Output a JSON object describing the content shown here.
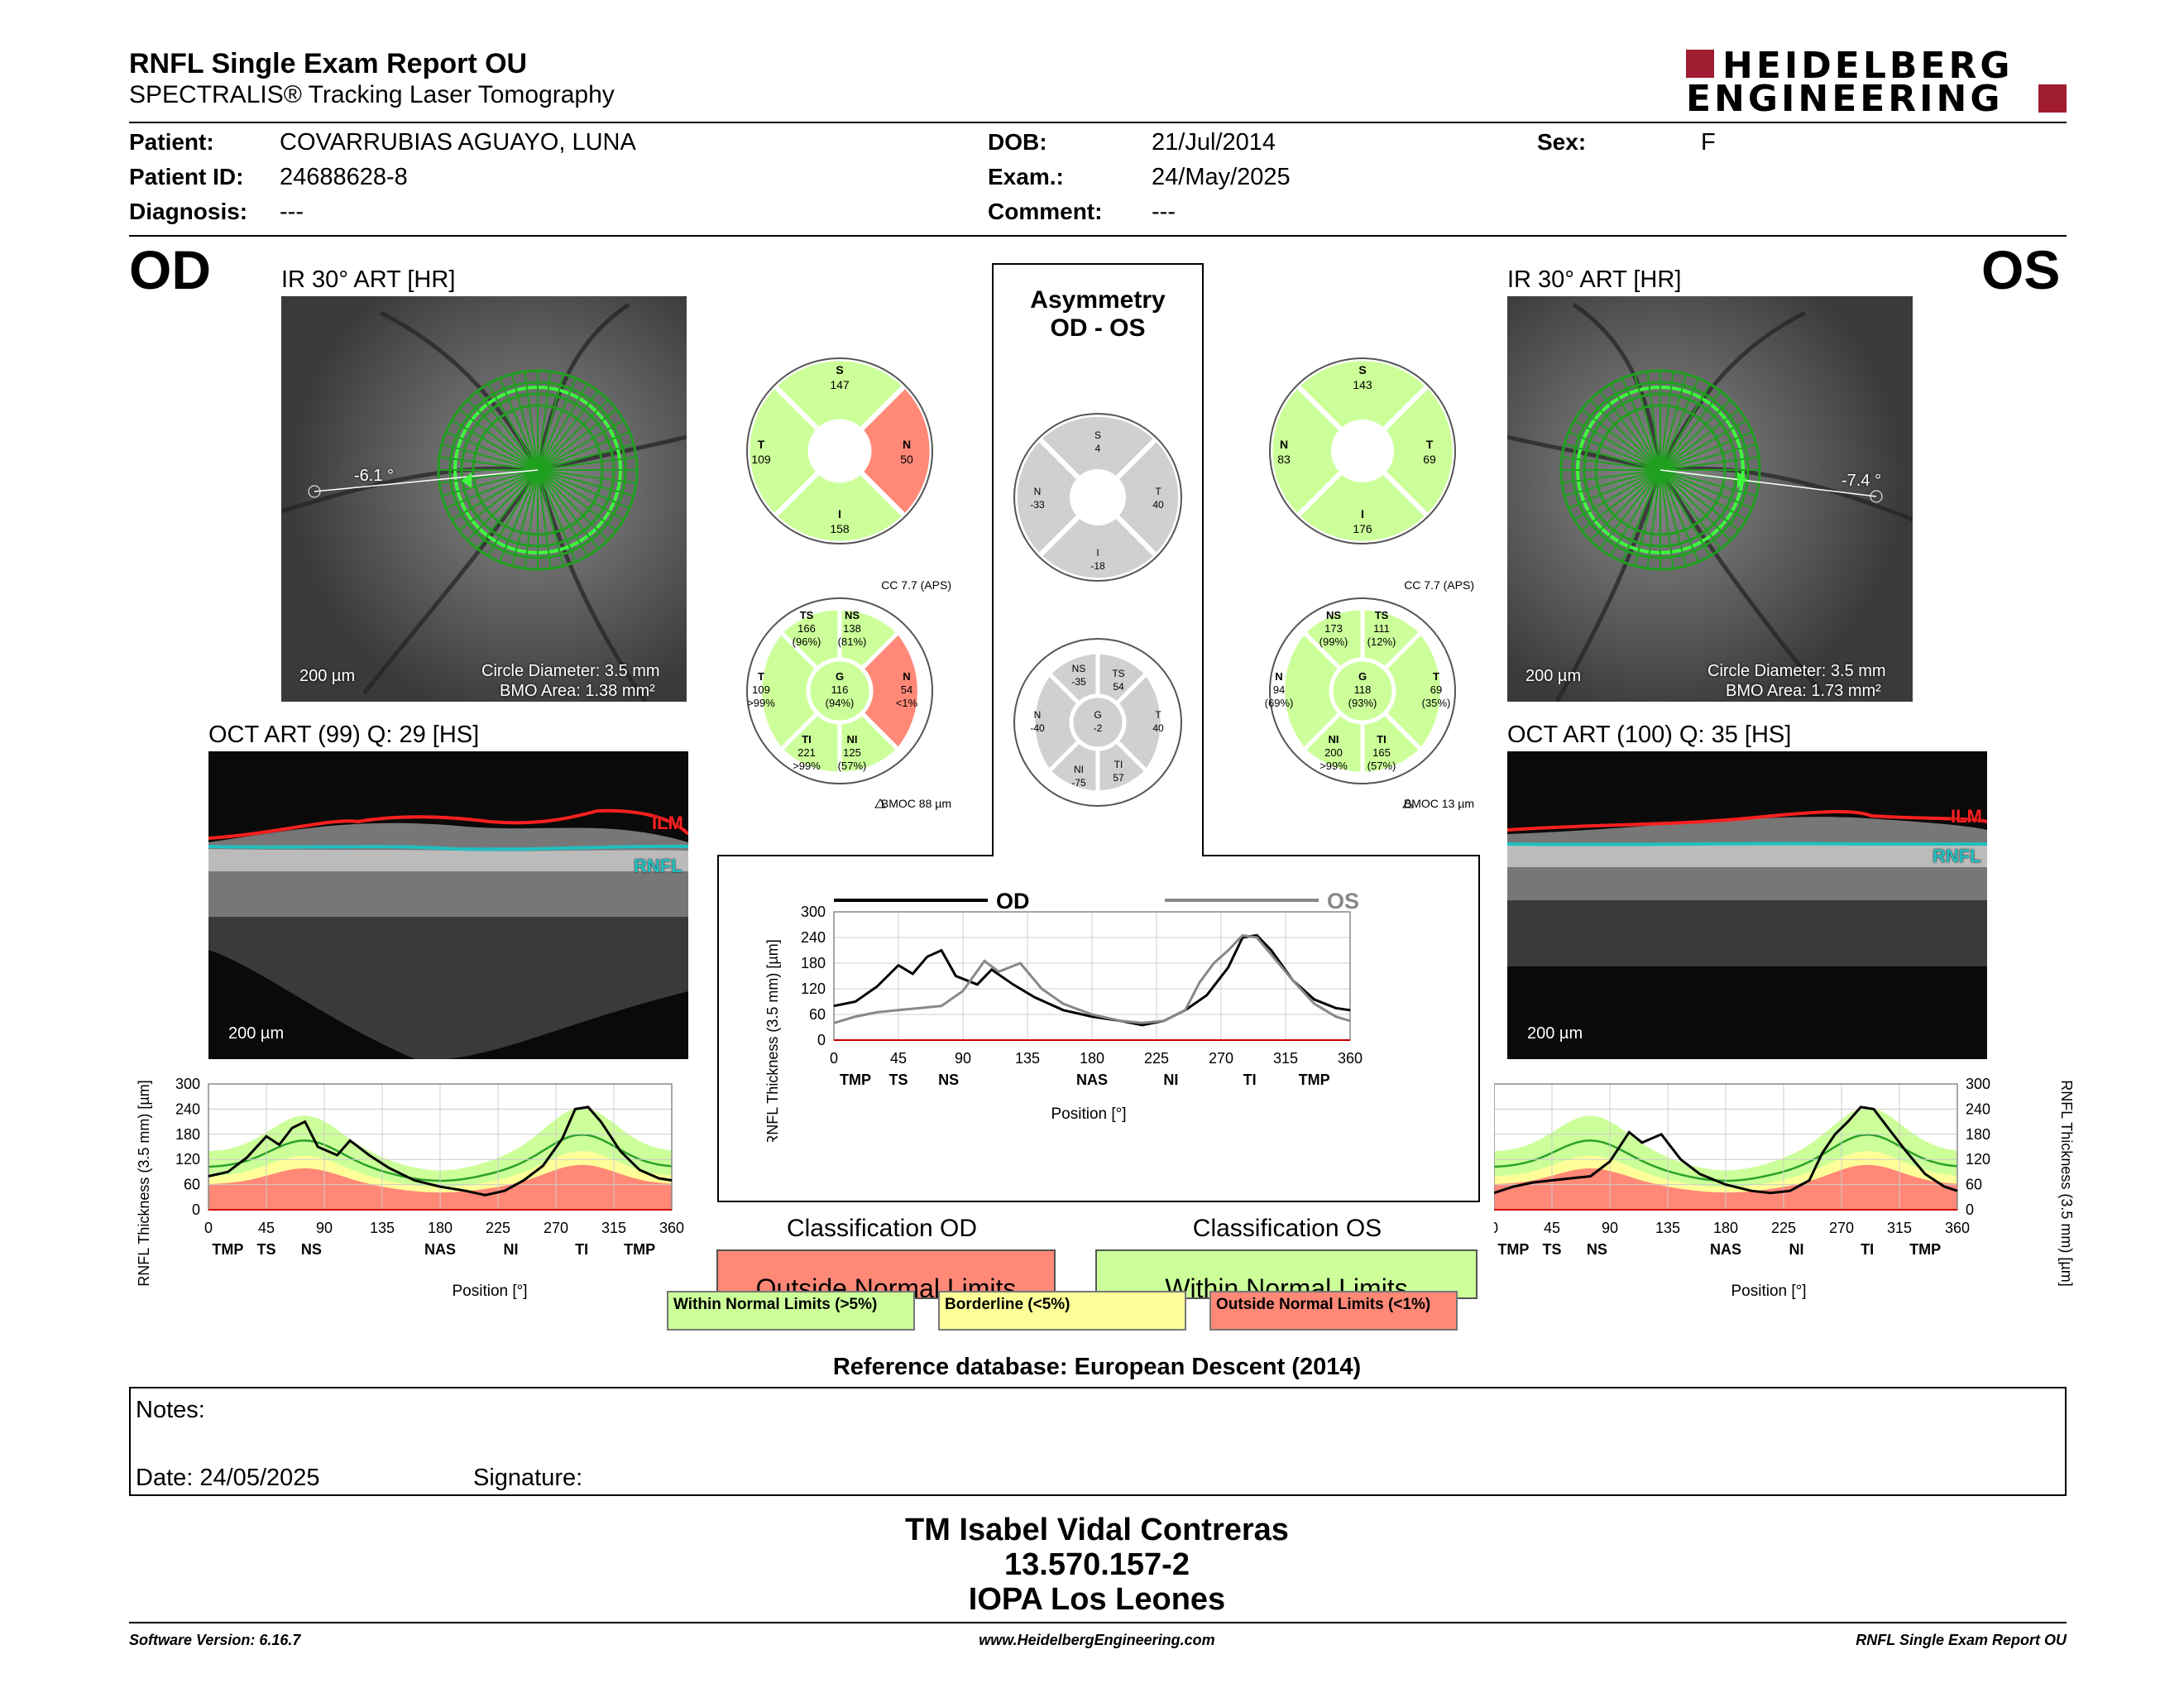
{
  "header": {
    "title": "RNFL Single Exam Report OU",
    "subtitle": "SPECTRALIS® Tracking Laser Tomography",
    "logo_line1": "HEIDELBERG",
    "logo_line2": "ENGINEERING"
  },
  "patient": {
    "patient_label": "Patient:",
    "patient": "COVARRUBIAS AGUAYO, LUNA",
    "id_label": "Patient ID:",
    "id": "24688628-8",
    "diagnosis_label": "Diagnosis:",
    "diagnosis": "---",
    "dob_label": "DOB:",
    "dob": "21/Jul/2014",
    "exam_label": "Exam.:",
    "exam": "24/May/2025",
    "comment_label": "Comment:",
    "comment": "---",
    "sex_label": "Sex:",
    "sex": "F"
  },
  "od": {
    "eye": "OD",
    "ir_title": "IR 30° ART [HR]",
    "angle": "-6.1 °",
    "scale": "200 µm",
    "circle": "Circle Diameter: 3.5 mm",
    "bmo": "BMO Area: 1.38 mm²",
    "oct_title": "OCT ART (99) Q: 29 [HS]",
    "oct_scale": "200 µm",
    "ilm": "ILM",
    "rnfl": "RNFL",
    "sectors": {
      "S": "147",
      "T": "109",
      "N": "50",
      "I": "158"
    },
    "cc": "CC 7.7 (APS)",
    "bmoc": "BMOC 88 µm",
    "garway": {
      "TS": [
        "TS",
        "166",
        "(96%)"
      ],
      "NS": [
        "NS",
        "138",
        "(81%)"
      ],
      "T": [
        "T",
        "109",
        ">99%"
      ],
      "G": [
        "G",
        "116",
        "(94%)"
      ],
      "N": [
        "N",
        "54",
        "<1%"
      ],
      "TI": [
        "TI",
        "221",
        ">99%"
      ],
      "NI": [
        "NI",
        "125",
        "(57%)"
      ]
    }
  },
  "os": {
    "eye": "OS",
    "ir_title": "IR 30° ART [HR]",
    "angle": "-7.4 °",
    "scale": "200 µm",
    "circle": "Circle Diameter: 3.5 mm",
    "bmo": "BMO Area: 1.73 mm²",
    "oct_title": "OCT ART (100) Q: 35 [HS]",
    "oct_scale": "200 µm",
    "ilm": "ILM",
    "rnfl": "RNFL",
    "sectors": {
      "S": "143",
      "N": "83",
      "T": "69",
      "I": "176"
    },
    "cc": "CC 7.7 (APS)",
    "bmoc": "BMOC 13 µm",
    "garway": {
      "NS": [
        "NS",
        "173",
        "(99%)"
      ],
      "TS": [
        "TS",
        "111",
        "(12%)"
      ],
      "N": [
        "N",
        "94",
        "(69%)"
      ],
      "G": [
        "G",
        "118",
        "(93%)"
      ],
      "T": [
        "T",
        "69",
        "(35%)"
      ],
      "NI": [
        "NI",
        "200",
        ">99%"
      ],
      "TI": [
        "TI",
        "165",
        "(57%)"
      ]
    }
  },
  "asym": {
    "title1": "Asymmetry",
    "title2": "OD - OS",
    "sectors": {
      "S": "4",
      "N": "-33",
      "T": "40",
      "I": "-18"
    },
    "garway": {
      "NS": [
        "NS",
        "-35"
      ],
      "TS": [
        "TS",
        "54"
      ],
      "N": [
        "N",
        "-40"
      ],
      "G": [
        "G",
        "-2"
      ],
      "T": [
        "T",
        "40"
      ],
      "NI": [
        "NI",
        "-75"
      ],
      "TI": [
        "TI",
        "57"
      ]
    }
  },
  "chart_data": [
    {
      "type": "line",
      "title": "",
      "ylabel": "RNFL Thickness (3.5 mm) [µm]",
      "xlabel": "Position [°]",
      "xlim": [
        0,
        360
      ],
      "ylim": [
        0,
        300
      ],
      "xticks": [
        0,
        45,
        90,
        135,
        180,
        225,
        270,
        315,
        360
      ],
      "yticks": [
        0,
        60,
        120,
        180,
        240,
        300
      ],
      "sector_labels": [
        "TMP",
        "TS",
        "NS",
        "NAS",
        "NI",
        "TI",
        "TMP"
      ],
      "series": [
        {
          "name": "OD",
          "x": [
            0,
            15,
            30,
            45,
            55,
            65,
            75,
            85,
            100,
            110,
            125,
            140,
            160,
            180,
            200,
            215,
            230,
            245,
            260,
            275,
            285,
            295,
            305,
            320,
            335,
            350,
            360
          ],
          "y": [
            80,
            90,
            125,
            175,
            155,
            195,
            210,
            150,
            130,
            165,
            130,
            100,
            70,
            55,
            45,
            35,
            45,
            70,
            105,
            170,
            240,
            245,
            210,
            140,
            95,
            75,
            70
          ]
        },
        {
          "name": "OS",
          "x": [
            0,
            15,
            30,
            45,
            60,
            75,
            90,
            105,
            115,
            130,
            145,
            160,
            180,
            200,
            215,
            230,
            245,
            255,
            265,
            275,
            285,
            295,
            305,
            320,
            335,
            350,
            360
          ],
          "y": [
            40,
            55,
            65,
            70,
            75,
            80,
            115,
            185,
            160,
            180,
            120,
            85,
            60,
            45,
            40,
            45,
            70,
            135,
            180,
            210,
            245,
            240,
            200,
            140,
            85,
            55,
            45
          ]
        }
      ]
    },
    {
      "type": "area",
      "title": "",
      "ylabel": "RNFL Thickness (3.5 mm) [µm]",
      "xlabel": "Position [°]",
      "xlim": [
        0,
        360
      ],
      "ylim": [
        0,
        300
      ],
      "series": [
        {
          "name": "OD",
          "x": [
            0,
            15,
            30,
            45,
            55,
            65,
            75,
            85,
            100,
            110,
            125,
            140,
            160,
            180,
            200,
            215,
            230,
            245,
            260,
            275,
            285,
            295,
            305,
            320,
            335,
            350,
            360
          ],
          "y": [
            80,
            90,
            125,
            175,
            155,
            195,
            210,
            150,
            130,
            165,
            130,
            100,
            70,
            55,
            45,
            35,
            45,
            70,
            105,
            170,
            240,
            245,
            210,
            140,
            95,
            75,
            70
          ]
        }
      ]
    },
    {
      "type": "area",
      "title": "",
      "ylabel": "RNFL Thickness (3.5 mm) [µm]",
      "xlabel": "Position [°]",
      "xlim": [
        0,
        360
      ],
      "ylim": [
        0,
        300
      ],
      "series": [
        {
          "name": "OS",
          "x": [
            0,
            15,
            30,
            45,
            60,
            75,
            90,
            105,
            115,
            130,
            145,
            160,
            180,
            200,
            215,
            230,
            245,
            255,
            265,
            275,
            285,
            295,
            305,
            320,
            335,
            350,
            360
          ],
          "y": [
            40,
            55,
            65,
            70,
            75,
            80,
            115,
            185,
            160,
            180,
            120,
            85,
            60,
            45,
            40,
            45,
            70,
            135,
            180,
            210,
            245,
            240,
            200,
            140,
            85,
            55,
            45
          ]
        }
      ]
    }
  ],
  "classification": {
    "od_title": "Classification OD",
    "od_value": "Outside Normal Limits",
    "os_title": "Classification OS",
    "os_value": "Within Normal Limits",
    "legend_wnl": "Within Normal Limits (>5%)",
    "legend_bl": "Borderline (<5%)",
    "legend_onl": "Outside Normal Limits (<1%)",
    "reference": "Reference database: European Descent (2014)"
  },
  "notes": {
    "label": "Notes:",
    "date": "Date: 24/05/2025",
    "signature": "Signature:"
  },
  "signer": {
    "name": "TM Isabel Vidal Contreras",
    "id": "13.570.157-2",
    "org": "IOPA Los Leones"
  },
  "footer": {
    "software": "Software Version: 6.16.7",
    "website": "www.HeidelbergEngineering.com",
    "report": "RNFL Single Exam Report OU"
  },
  "colors": {
    "wnl": "#ccff99",
    "borderline": "#ffff99",
    "onl": "#ff8877",
    "gray": "#d0d0d0",
    "logo_red": "#a01c30",
    "ilm": "#ff2020",
    "rnfl": "#20c0c0"
  }
}
